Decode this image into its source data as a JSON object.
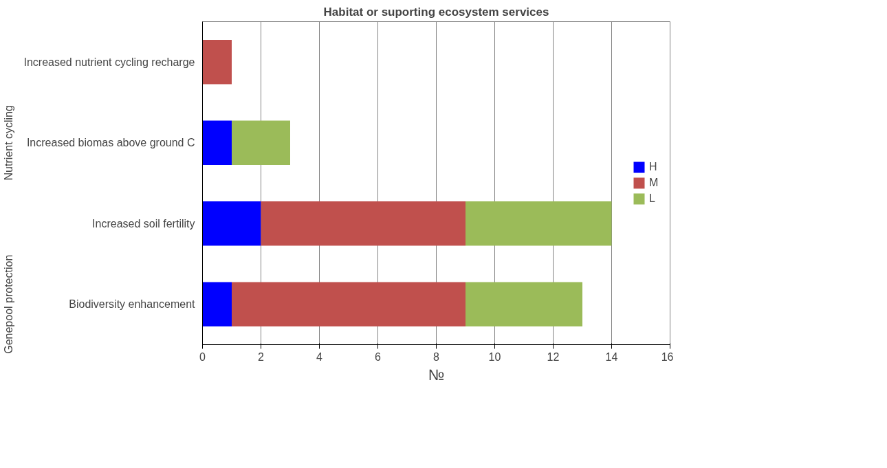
{
  "chart_data": {
    "type": "bar",
    "orientation": "horizontal",
    "stacked": true,
    "title": "Habitat or suporting ecosystem services",
    "xlabel": "№",
    "categories": [
      "Increased nutrient cycling recharge",
      "Increased biomas above ground C",
      "Increased soil fertility",
      "Biodiversity enhancement"
    ],
    "series": [
      {
        "name": "H",
        "color": "#0000ff",
        "values": [
          0,
          1,
          2,
          1
        ]
      },
      {
        "name": "M",
        "color": "#c0504d",
        "values": [
          1,
          0,
          7,
          8
        ]
      },
      {
        "name": "L",
        "color": "#9bbb59",
        "values": [
          0,
          2,
          5,
          4
        ]
      }
    ],
    "xlim": [
      0,
      16
    ],
    "xticks": [
      0,
      2,
      4,
      6,
      8,
      10,
      12,
      14,
      16
    ],
    "grid": "x",
    "legend": "right",
    "annotations": [
      "Nutrient cycling",
      "Genepool protection"
    ]
  }
}
